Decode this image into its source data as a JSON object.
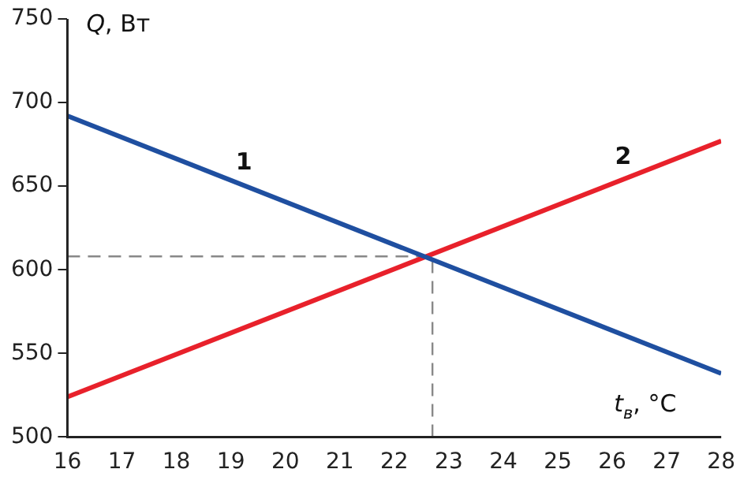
{
  "chart_data": {
    "type": "line",
    "xlabel": "t$_{в}$, °C",
    "ylabel": "Q, Вт",
    "x": [
      16,
      28
    ],
    "series": [
      {
        "name": "1",
        "color": "#1f4fa0",
        "values": [
          692,
          538
        ]
      },
      {
        "name": "2",
        "color": "#e8212b",
        "values": [
          524,
          677
        ]
      }
    ],
    "xlim": [
      16,
      28
    ],
    "xticks": [
      16,
      17,
      18,
      19,
      20,
      21,
      22,
      23,
      24,
      25,
      26,
      27,
      28
    ],
    "ylim": [
      500,
      750
    ],
    "yticks": [
      500,
      550,
      600,
      650,
      700,
      750
    ],
    "grid": false,
    "legend": false,
    "marker": "none",
    "line_style": "solid",
    "ref_lines": [
      {
        "axis": "y",
        "value": 608,
        "color": "#888888",
        "line_style": "dashed"
      },
      {
        "axis": "x",
        "value": 22.7,
        "color": "#888888",
        "line_style": "dashed"
      }
    ]
  }
}
